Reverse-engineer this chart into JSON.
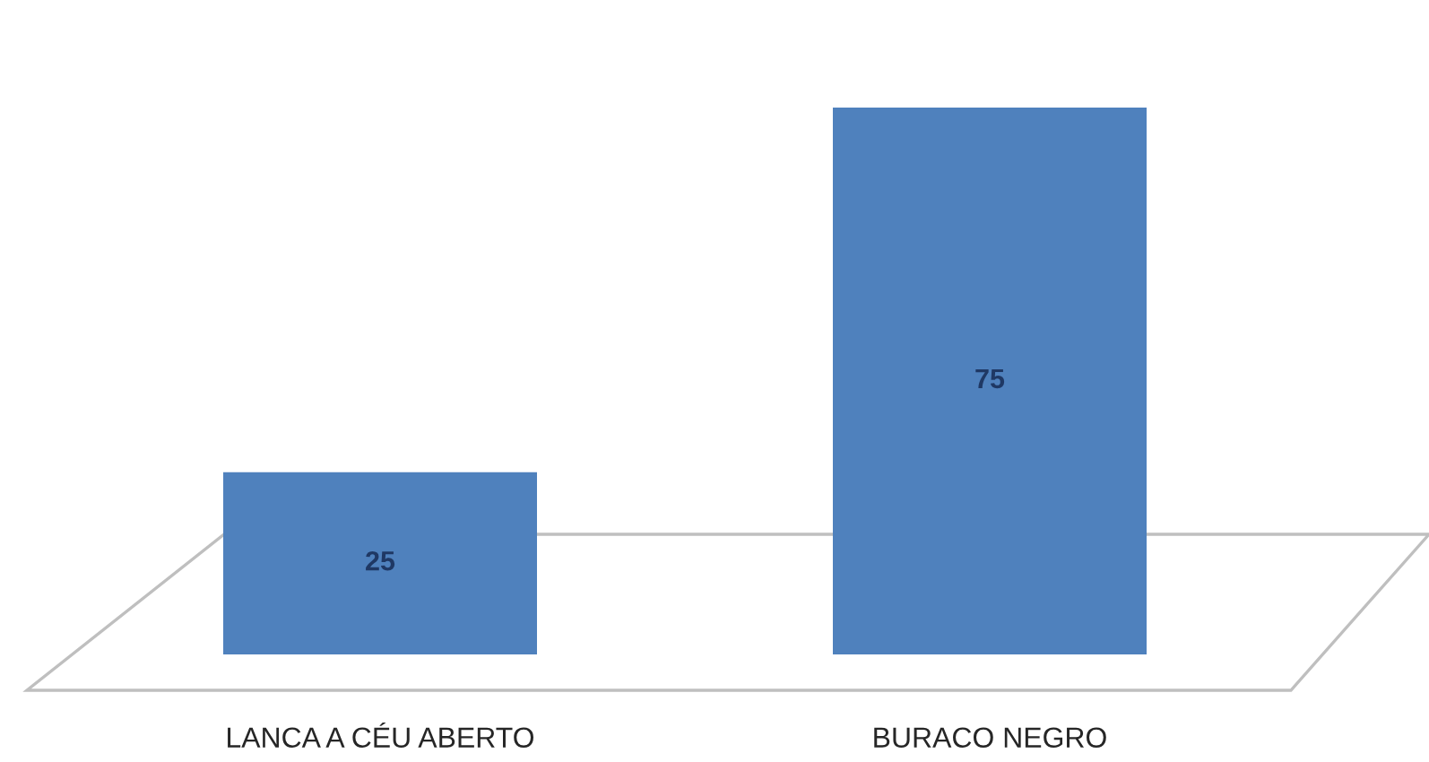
{
  "chart_data": {
    "type": "bar",
    "categories": [
      "LANCA A CÉU ABERTO",
      "BURACO NEGRO"
    ],
    "values": [
      25,
      75
    ],
    "color": "#4f81bd",
    "data_labels": true
  }
}
